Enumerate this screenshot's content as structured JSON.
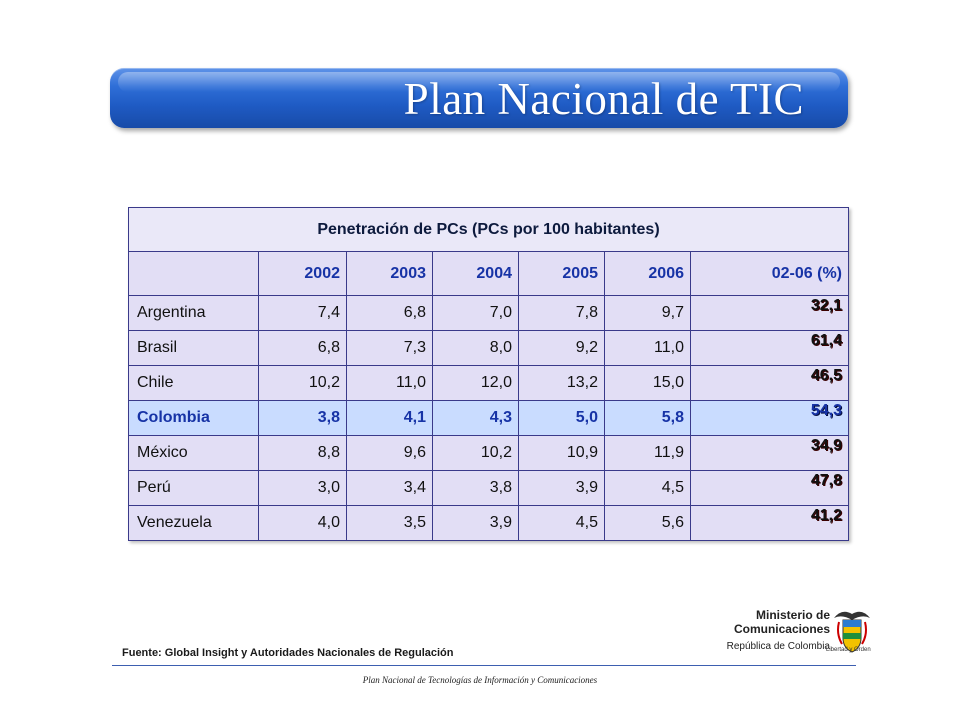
{
  "header": {
    "title": "Plan Nacional de TIC"
  },
  "table": {
    "caption": "Penetración de PCs (PCs por 100 habitantes)",
    "columns": [
      "",
      "2002",
      "2003",
      "2004",
      "2005",
      "2006",
      "02-06 (%)"
    ],
    "rows": [
      {
        "country": "Argentina",
        "values": [
          "7,4",
          "6,8",
          "7,0",
          "7,8",
          "9,7"
        ],
        "growth": "32,1"
      },
      {
        "country": "Brasil",
        "values": [
          "6,8",
          "7,3",
          "8,0",
          "9,2",
          "11,0"
        ],
        "growth": "61,4"
      },
      {
        "country": "Chile",
        "values": [
          "10,2",
          "11,0",
          "12,0",
          "13,2",
          "15,0"
        ],
        "growth": "46,5"
      },
      {
        "country": "Colombia",
        "values": [
          "3,8",
          "4,1",
          "4,3",
          "5,0",
          "5,8"
        ],
        "growth": "54,3"
      },
      {
        "country": "México",
        "values": [
          "8,8",
          "9,6",
          "10,2",
          "10,9",
          "11,9"
        ],
        "growth": "34,9"
      },
      {
        "country": "Perú",
        "values": [
          "3,0",
          "3,4",
          "3,8",
          "3,9",
          "4,5"
        ],
        "growth": "47,8"
      },
      {
        "country": "Venezuela",
        "values": [
          "4,0",
          "3,5",
          "3,9",
          "4,5",
          "5,6"
        ],
        "growth": "41,2"
      }
    ]
  },
  "source": "Fuente: Global Insight y Autoridades Nacionales de Regulación",
  "footer": "Plan Nacional de Tecnologías de Información y Comunicaciones",
  "logo": {
    "line1": "Ministerio de",
    "line2": "Comunicaciones",
    "line3": "República de Colombia",
    "motto": "Libertad y Orden"
  },
  "colors": {
    "title_bar": "#1f5bc4",
    "growth_text": "#c40f10",
    "highlight_row": "#c9dcff",
    "header_text": "#1733a6"
  }
}
